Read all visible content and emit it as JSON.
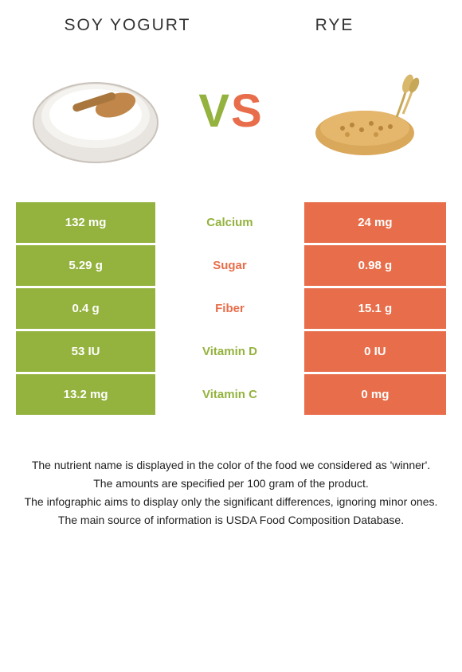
{
  "header": {
    "left_title": "SOY YOGURT",
    "right_title": "RYE"
  },
  "vs": {
    "v": "V",
    "s": "S"
  },
  "colors": {
    "left": "#94b23e",
    "right": "#e86d4a",
    "text_dark": "#333333",
    "bg": "#ffffff"
  },
  "rows": [
    {
      "left": "132 mg",
      "label": "Calcium",
      "winner": "left",
      "right": "24 mg"
    },
    {
      "left": "5.29 g",
      "label": "Sugar",
      "winner": "right",
      "right": "0.98 g"
    },
    {
      "left": "0.4 g",
      "label": "Fiber",
      "winner": "right",
      "right": "15.1 g"
    },
    {
      "left": "53 IU",
      "label": "Vitamin D",
      "winner": "left",
      "right": "0 IU"
    },
    {
      "left": "13.2 mg",
      "label": "Vitamin C",
      "winner": "left",
      "right": "0 mg"
    }
  ],
  "footer": {
    "line1": "The nutrient name is displayed in the color of the food we considered as 'winner'.",
    "line2": "The amounts are specified per 100 gram of the product.",
    "line3": "The infographic aims to display only the significant differences, ignoring minor ones.",
    "line4": "The main source of information is USDA Food Composition Database."
  }
}
